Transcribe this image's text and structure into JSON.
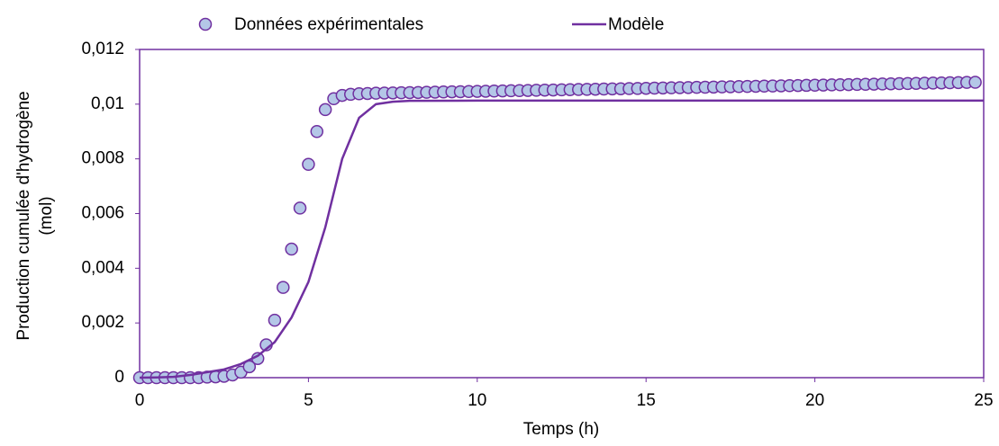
{
  "chart_data": {
    "type": "scatter",
    "x_label": "Temps (h)",
    "y_label": [
      "Production cumulée d'hydrogène",
      "(mol)"
    ],
    "xlim": [
      0,
      25
    ],
    "xticks": [
      0,
      5,
      10,
      15,
      20,
      25
    ],
    "ylim": [
      0,
      0.012
    ],
    "yticks": [
      0,
      {
        "value": 0.002,
        "label": "0,002"
      },
      {
        "value": 0.004,
        "label": "0,004"
      },
      {
        "value": 0.006,
        "label": "0,006"
      },
      {
        "value": 0.008,
        "label": "0,008"
      },
      {
        "value": 0.01,
        "label": "0,01"
      },
      {
        "value": 0.012,
        "label": "0,012"
      }
    ],
    "axis_color": "#7030a0",
    "series": [
      {
        "name": "Données expérimentales",
        "type": "scatter",
        "color": "#b4c7e7",
        "edge_color": "#7030a0",
        "x": [
          0,
          0.25,
          0.5,
          0.75,
          1,
          1.25,
          1.5,
          1.75,
          2,
          2.25,
          2.5,
          2.75,
          3,
          3.25,
          3.5,
          3.75,
          4,
          4.25,
          4.5,
          4.75,
          5,
          5.25,
          5.5,
          5.75,
          6,
          6.25,
          6.5,
          6.75,
          7,
          7.25,
          7.5,
          7.75,
          8,
          8.25,
          8.5,
          8.75,
          9,
          9.25,
          9.5,
          9.75,
          10,
          10.25,
          10.5,
          10.75,
          11,
          11.25,
          11.5,
          11.75,
          12,
          12.25,
          12.5,
          12.75,
          13,
          13.25,
          13.5,
          13.75,
          14,
          14.25,
          14.5,
          14.75,
          15,
          15.25,
          15.5,
          15.75,
          16,
          16.25,
          16.5,
          16.75,
          17,
          17.25,
          17.5,
          17.75,
          18,
          18.25,
          18.5,
          18.75,
          19,
          19.25,
          19.5,
          19.75,
          20,
          20.25,
          20.5,
          20.75,
          21,
          21.25,
          21.5,
          21.75,
          22,
          22.25,
          22.5,
          22.75,
          23,
          23.25,
          23.5,
          23.75,
          24,
          24.25,
          24.5,
          24.75
        ],
        "values": [
          0,
          0,
          0,
          0,
          0,
          0,
          0,
          0,
          2e-05,
          3e-05,
          5e-05,
          0.0001,
          0.0002,
          0.0004,
          0.0007,
          0.0012,
          0.0021,
          0.0033,
          0.0047,
          0.0062,
          0.0078,
          0.009,
          0.0098,
          0.0102,
          0.01032,
          0.01036,
          0.01038,
          0.01039,
          0.0104,
          0.010406,
          0.010411,
          0.010417,
          0.010423,
          0.010428,
          0.010434,
          0.010439,
          0.010445,
          0.010451,
          0.010456,
          0.010462,
          0.010468,
          0.010473,
          0.010479,
          0.010484,
          0.01049,
          0.010496,
          0.010501,
          0.010507,
          0.010513,
          0.010518,
          0.010524,
          0.010529,
          0.010535,
          0.010541,
          0.010546,
          0.010552,
          0.010558,
          0.010563,
          0.010569,
          0.010574,
          0.01058,
          0.010586,
          0.010591,
          0.010597,
          0.010603,
          0.010608,
          0.010614,
          0.010619,
          0.010625,
          0.010631,
          0.010636,
          0.010642,
          0.010648,
          0.010653,
          0.010659,
          0.010664,
          0.01067,
          0.010676,
          0.010681,
          0.010687,
          0.010693,
          0.010698,
          0.010704,
          0.010709,
          0.010715,
          0.010721,
          0.010726,
          0.010732,
          0.010738,
          0.010743,
          0.010749,
          0.010754,
          0.01076,
          0.010766,
          0.010771,
          0.010777,
          0.010783,
          0.010788,
          0.010794,
          0.0108
        ]
      },
      {
        "name": "Modèle",
        "type": "line",
        "color": "#7030a0",
        "x": [
          0,
          0.5,
          1,
          1.5,
          2,
          2.5,
          3,
          3.5,
          4,
          4.5,
          5,
          5.5,
          6,
          6.5,
          7,
          7.5,
          8,
          10,
          15,
          20,
          25
        ],
        "values": [
          0,
          1e-05,
          3e-05,
          0.0001,
          0.0002,
          0.0003,
          0.0005,
          0.0008,
          0.0013,
          0.0022,
          0.0035,
          0.0055,
          0.008,
          0.0095,
          0.01,
          0.01009,
          0.01012,
          0.01013,
          0.01013,
          0.01013,
          0.01013
        ]
      }
    ]
  }
}
